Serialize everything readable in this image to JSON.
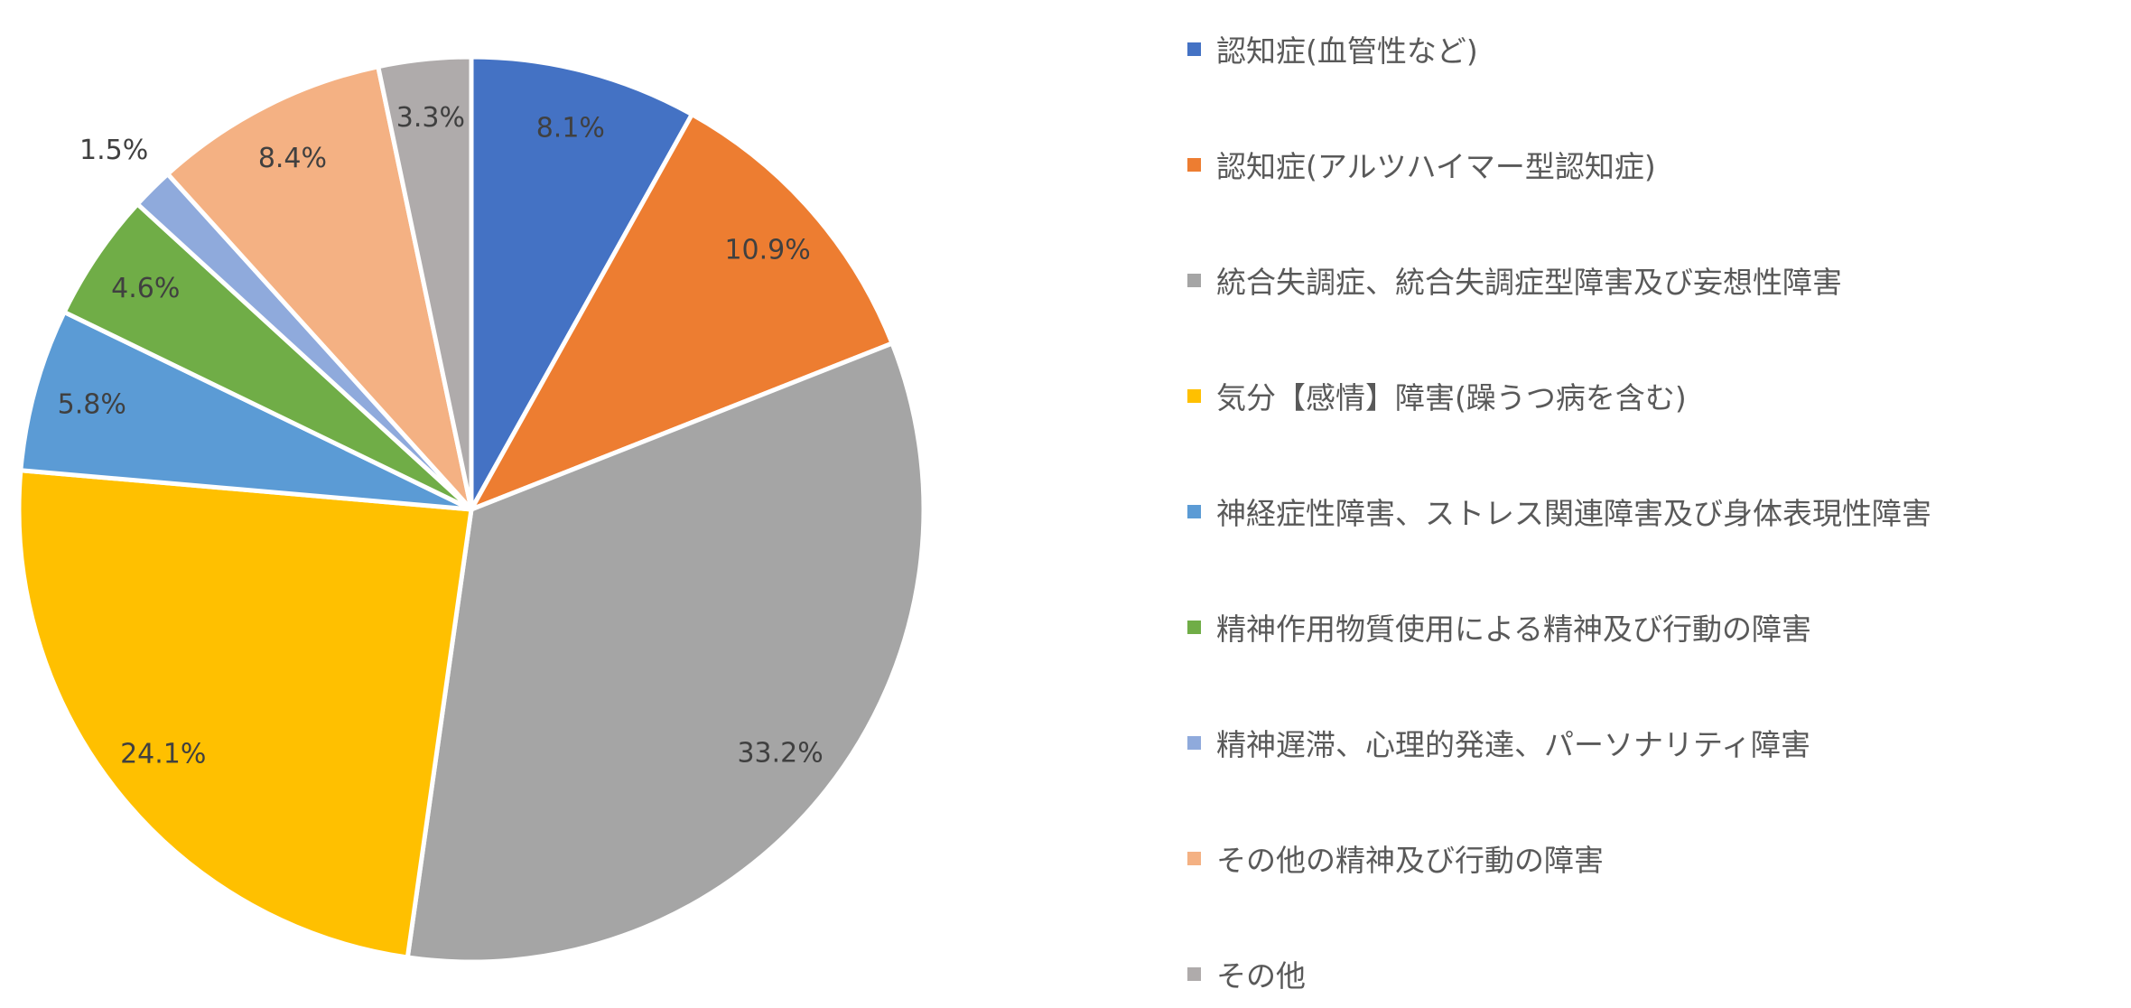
{
  "chart_data": {
    "type": "pie",
    "title": "",
    "start_angle_deg": 0,
    "direction": "clockwise",
    "legend_position": "right",
    "slices": [
      {
        "label": "認知症(血管性など)",
        "value": 8.1,
        "display": "8.1%",
        "color": "#4472C4"
      },
      {
        "label": "認知症(アルツハイマー型認知症)",
        "value": 10.9,
        "display": "10.9%",
        "color": "#ED7D31"
      },
      {
        "label": "統合失調症、統合失調症型障害及び妄想性障害",
        "value": 33.2,
        "display": "33.2%",
        "color": "#A5A5A5"
      },
      {
        "label": "気分【感情】障害(躁うつ病を含む)",
        "value": 24.1,
        "display": "24.1%",
        "color": "#FFC000"
      },
      {
        "label": "神経症性障害、ストレス関連障害及び身体表現性障害",
        "value": 5.8,
        "display": "5.8%",
        "color": "#5B9BD5"
      },
      {
        "label": "精神作用物質使用による精神及び行動の障害",
        "value": 4.6,
        "display": "4.6%",
        "color": "#70AD47"
      },
      {
        "label": "精神遅滞、心理的発達、パーソナリティ障害",
        "value": 1.5,
        "display": "1.5%",
        "color": "#8FAADC"
      },
      {
        "label": "その他の精神及び行動の障害",
        "value": 8.4,
        "display": "8.4%",
        "color": "#F4B183"
      },
      {
        "label": "その他",
        "value": 3.3,
        "display": "3.3%",
        "color": "#AFABAB"
      }
    ]
  }
}
